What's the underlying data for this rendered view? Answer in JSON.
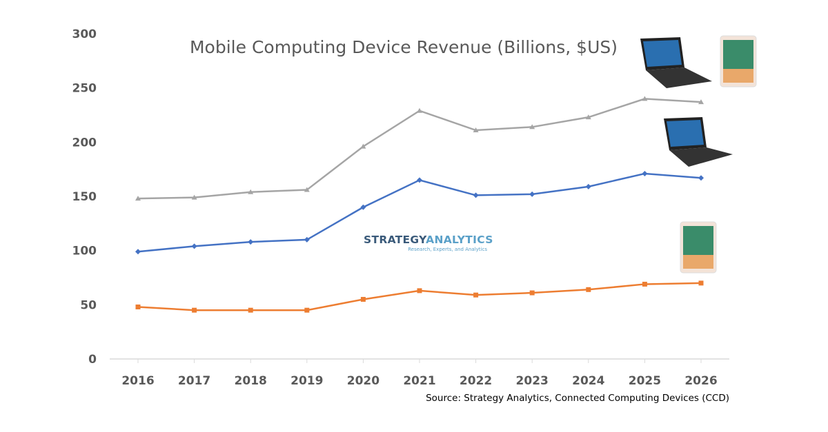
{
  "chart_data": {
    "type": "line",
    "title": "Mobile Computing Device Revenue (Billions, $US)",
    "xlabel": "",
    "ylabel": "",
    "categories": [
      "2016",
      "2017",
      "2018",
      "2019",
      "2020",
      "2021",
      "2022",
      "2023",
      "2024",
      "2025",
      "2026"
    ],
    "ylim": [
      0,
      300
    ],
    "yticks": [
      0,
      50,
      100,
      150,
      200,
      250,
      300
    ],
    "grid": false,
    "series": [
      {
        "color": "#a5a5a5",
        "marker": "triangle",
        "icon": "laptop-and-tablet-image",
        "values": [
          148,
          149,
          154,
          156,
          196,
          229,
          211,
          214,
          223,
          240,
          237
        ]
      },
      {
        "color": "#4472c4",
        "marker": "diamond",
        "icon": "laptop-image",
        "values": [
          99,
          104,
          108,
          110,
          140,
          165,
          151,
          152,
          159,
          171,
          167
        ]
      },
      {
        "color": "#ed7d31",
        "marker": "square",
        "icon": "tablet-image",
        "values": [
          48,
          45,
          45,
          45,
          55,
          63,
          59,
          61,
          64,
          69,
          70
        ]
      }
    ],
    "source": "Source: Strategy Analytics, Connected Computing Devices (CCD)",
    "logo": {
      "name": "STRATEGY ANALYTICS",
      "tagline": "Research, Experts, and Analytics"
    }
  }
}
